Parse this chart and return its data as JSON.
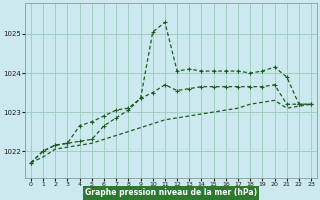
{
  "title": "Graphe pression niveau de la mer (hPa)",
  "bg_color": "#cce9f0",
  "grid_color": "#99ccbb",
  "line_color_dark": "#1a5c1a",
  "line_color_mid": "#2d7a2d",
  "xlim": [
    -0.5,
    23.5
  ],
  "ylim": [
    1021.3,
    1025.8
  ],
  "yticks": [
    1022,
    1023,
    1024,
    1025
  ],
  "xticks": [
    0,
    1,
    2,
    3,
    4,
    5,
    6,
    7,
    8,
    9,
    10,
    11,
    12,
    13,
    14,
    15,
    16,
    17,
    18,
    19,
    20,
    21,
    22,
    23
  ],
  "label_bg": "#2d7a2d",
  "label_fg": "#ffffff",
  "series_slow_x": [
    0,
    1,
    2,
    3,
    4,
    5,
    6,
    7,
    8,
    9,
    10,
    11,
    12,
    13,
    14,
    15,
    16,
    17,
    18,
    19,
    20,
    21,
    22,
    23
  ],
  "series_slow_y": [
    1021.7,
    1021.85,
    1022.05,
    1022.1,
    1022.15,
    1022.2,
    1022.3,
    1022.4,
    1022.5,
    1022.6,
    1022.7,
    1022.8,
    1022.85,
    1022.9,
    1022.95,
    1023.0,
    1023.05,
    1023.1,
    1023.2,
    1023.25,
    1023.3,
    1023.1,
    1023.15,
    1023.2
  ],
  "series_main_x": [
    0,
    1,
    2,
    3,
    4,
    5,
    6,
    7,
    8,
    9,
    10,
    11,
    12,
    13,
    14,
    15,
    16,
    17,
    18,
    19,
    20,
    21,
    22,
    23
  ],
  "series_main_y": [
    1021.7,
    1022.0,
    1022.15,
    1022.2,
    1022.25,
    1022.3,
    1022.65,
    1022.85,
    1023.05,
    1023.35,
    1025.05,
    1025.3,
    1024.05,
    1024.1,
    1024.05,
    1024.05,
    1024.05,
    1024.05,
    1024.0,
    1024.05,
    1024.15,
    1023.9,
    1023.2,
    1023.2
  ],
  "series_mid_x": [
    0,
    1,
    2,
    3,
    4,
    5,
    6,
    7,
    8,
    9,
    10,
    11,
    12,
    13,
    14,
    15,
    16,
    17,
    18,
    19,
    20,
    21,
    22,
    23
  ],
  "series_mid_y": [
    1021.7,
    1022.0,
    1022.15,
    1022.2,
    1022.65,
    1022.75,
    1022.9,
    1023.05,
    1023.1,
    1023.35,
    1023.5,
    1023.7,
    1023.55,
    1023.6,
    1023.65,
    1023.65,
    1023.65,
    1023.65,
    1023.65,
    1023.65,
    1023.7,
    1023.2,
    1023.2,
    1023.2
  ]
}
